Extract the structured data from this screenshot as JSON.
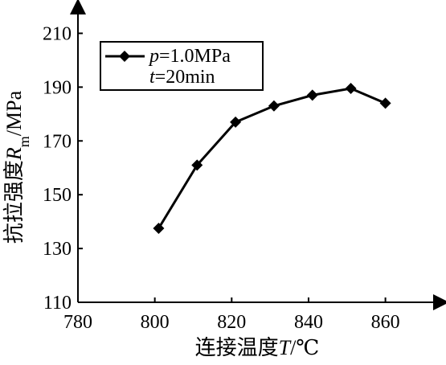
{
  "chart_data": {
    "type": "line",
    "x": [
      801,
      811,
      821,
      831,
      841,
      851,
      860
    ],
    "series": [
      {
        "values": [
          137.5,
          161,
          177,
          183,
          187,
          189.5,
          184
        ]
      }
    ],
    "xlabel": {
      "prefix": "连接温度",
      "symbol": "T",
      "unit": "/℃"
    },
    "ylabel": {
      "prefix": "抗拉强度",
      "symbol": "R",
      "subscript": "m",
      "unit": "/MPa"
    },
    "x_ticks": [
      780,
      800,
      820,
      840,
      860
    ],
    "y_ticks": [
      110,
      130,
      150,
      170,
      190,
      210
    ],
    "xlim": [
      780,
      872
    ],
    "ylim": [
      110,
      220
    ],
    "grid": false,
    "legend": {
      "position": "top-left",
      "line1_symbol": "p",
      "line1_value": "=1.0MPa",
      "line2_symbol": "t",
      "line2_value": "=20min"
    },
    "colors": {
      "line": "#000000",
      "marker": "#000000",
      "axis": "#000000"
    }
  }
}
